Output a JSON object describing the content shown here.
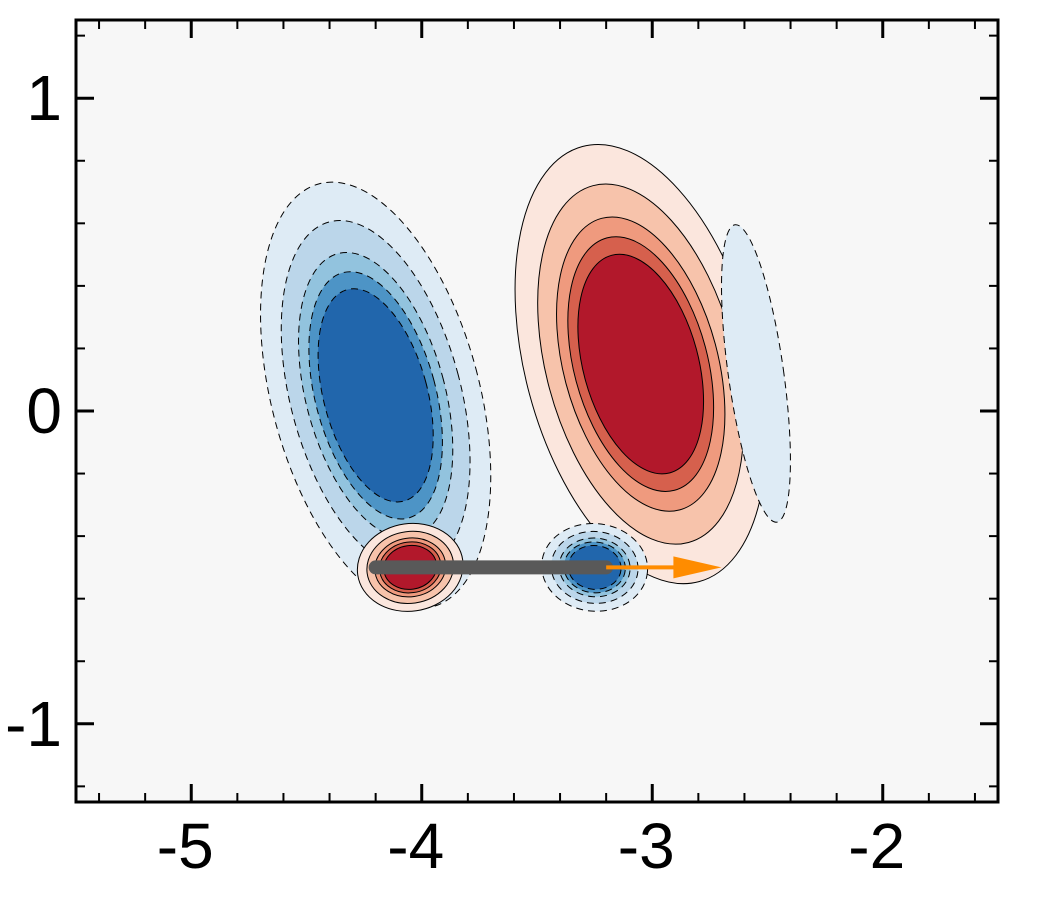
{
  "chart_data": {
    "type": "heatmap",
    "title": "",
    "xlabel": "",
    "ylabel": "",
    "xlim": [
      -5.5,
      -1.5
    ],
    "ylim": [
      -1.25,
      1.25
    ],
    "x_ticks": [
      {
        "value": -5,
        "label": "-5"
      },
      {
        "value": -4,
        "label": "-4"
      },
      {
        "value": -3,
        "label": "-3"
      },
      {
        "value": -2,
        "label": "-2"
      }
    ],
    "y_ticks": [
      {
        "value": 1,
        "label": "1"
      },
      {
        "value": 0,
        "label": "0"
      },
      {
        "value": -1,
        "label": "-1"
      }
    ],
    "grid": false,
    "background_color": "#f7f7f7",
    "positive_colors": [
      "#fbe6dd",
      "#f7c3ab",
      "#ef9a7e",
      "#d6604d",
      "#b2182b"
    ],
    "negative_colors": [
      "#deebf5",
      "#bbd6ea",
      "#92c3de",
      "#4d94c6",
      "#2166ac"
    ],
    "vortices": [
      {
        "name": "upper-negative",
        "sign": -1,
        "center": [
          -4.2,
          0.05
        ],
        "radius": [
          0.45,
          0.7
        ],
        "rotation_deg": -15,
        "strength": 1.0
      },
      {
        "name": "upper-positive",
        "sign": 1,
        "center": [
          -3.05,
          0.15
        ],
        "radius": [
          0.5,
          0.72
        ],
        "rotation_deg": -15,
        "strength": 1.0
      },
      {
        "name": "far-right-negative",
        "sign": -1,
        "center": [
          -2.55,
          0.12
        ],
        "radius": [
          0.12,
          0.48
        ],
        "rotation_deg": -8,
        "strength": 0.28
      },
      {
        "name": "lower-positive",
        "sign": 1,
        "center": [
          -4.05,
          -0.5
        ],
        "radius": [
          0.23,
          0.14
        ],
        "rotation_deg": -8,
        "strength": 1.0
      },
      {
        "name": "lower-negative",
        "sign": -1,
        "center": [
          -3.25,
          -0.5
        ],
        "radius": [
          0.23,
          0.14
        ],
        "rotation_deg": 5,
        "strength": 1.0
      }
    ],
    "plate": {
      "x_start": -4.2,
      "x_end": -3.2,
      "y": -0.5,
      "color": "#595959"
    },
    "motion_arrow": {
      "x_start": -3.2,
      "x_end": -2.7,
      "y": -0.5,
      "color": "#ff8c00"
    }
  }
}
